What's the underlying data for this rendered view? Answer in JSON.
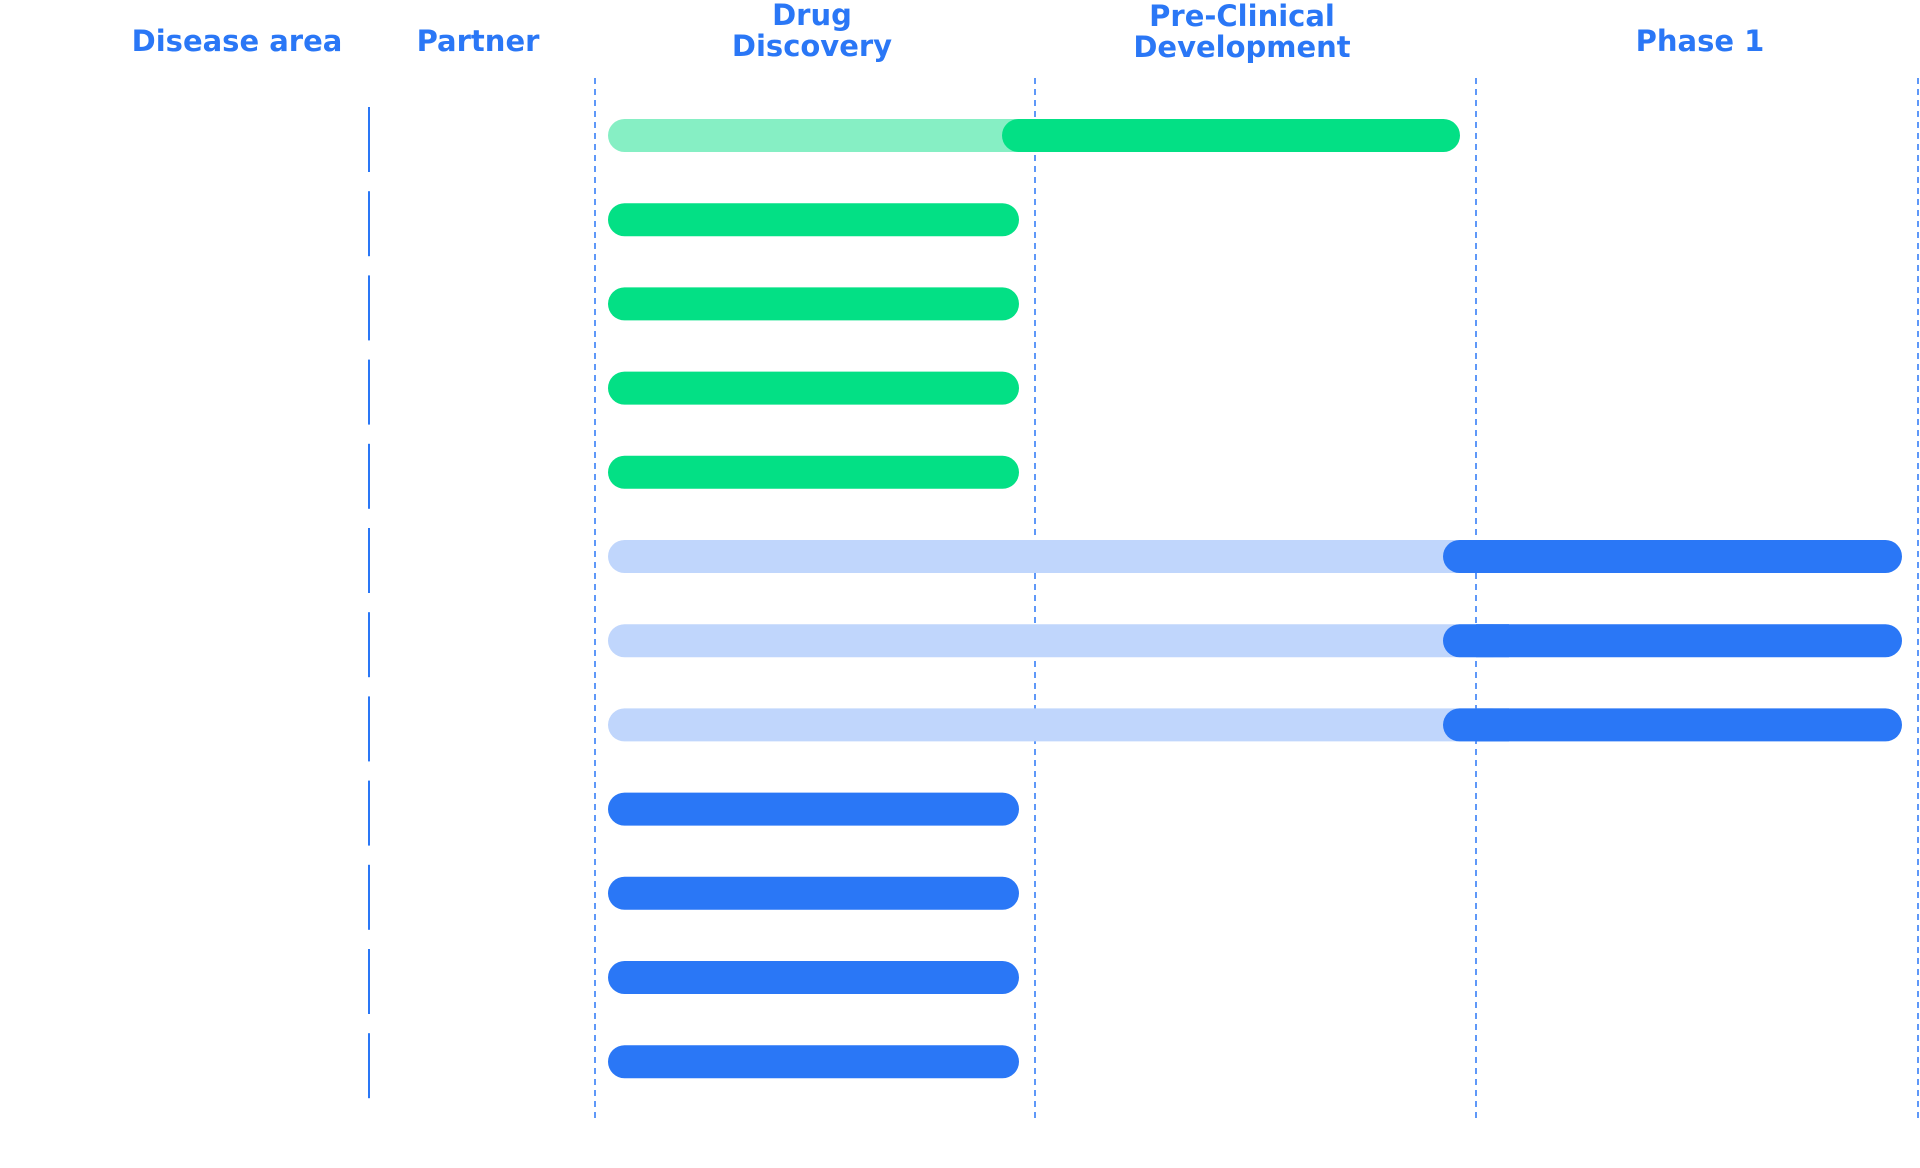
{
  "headers": {
    "disease_area": "Disease area",
    "partner": "Partner",
    "drug_discovery": "Drug\nDiscovery",
    "pre_clinical": "Pre-Clinical\nDevelopment",
    "phase1": "Phase 1"
  },
  "colors": {
    "header_text": "#2a77f6",
    "divider": "#2a77f6",
    "green": "#03e085",
    "green_light": "#86efc4",
    "blue": "#2a77f6",
    "blue_light": "#c0d6fc"
  },
  "chart_data": {
    "type": "bar",
    "orientation": "horizontal",
    "stages": [
      "Drug\nDiscovery",
      "Pre-Clinical\nDevelopment",
      "Phase 1"
    ],
    "programs": [
      {
        "color": "green",
        "stage_reached": 2,
        "current_stage": "Pre-Clinical\nDevelopment"
      },
      {
        "color": "green",
        "stage_reached": 1,
        "current_stage": "Drug\nDiscovery"
      },
      {
        "color": "green",
        "stage_reached": 1,
        "current_stage": "Drug\nDiscovery"
      },
      {
        "color": "green",
        "stage_reached": 1,
        "current_stage": "Drug\nDiscovery"
      },
      {
        "color": "green",
        "stage_reached": 1,
        "current_stage": "Drug\nDiscovery"
      },
      {
        "color": "blue",
        "stage_reached": 3,
        "current_stage": "Phase 1"
      },
      {
        "color": "blue",
        "stage_reached": 3,
        "current_stage": "Phase 1"
      },
      {
        "color": "blue",
        "stage_reached": 3,
        "current_stage": "Phase 1"
      },
      {
        "color": "blue",
        "stage_reached": 1,
        "current_stage": "Drug\nDiscovery"
      },
      {
        "color": "blue",
        "stage_reached": 1,
        "current_stage": "Drug\nDiscovery"
      },
      {
        "color": "blue",
        "stage_reached": 1,
        "current_stage": "Drug\nDiscovery"
      },
      {
        "color": "blue",
        "stage_reached": 1,
        "current_stage": "Drug\nDiscovery"
      }
    ],
    "grid": true,
    "legend": "none"
  }
}
